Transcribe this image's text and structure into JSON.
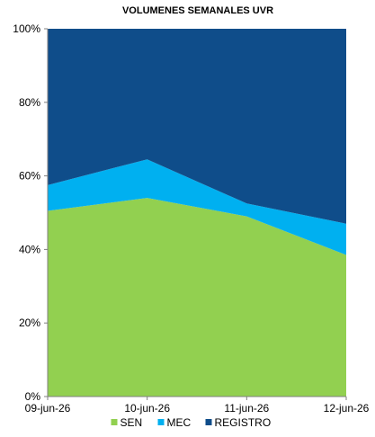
{
  "chart_data": {
    "type": "area",
    "stacked": true,
    "normalized": "percent",
    "title": "VOLUMENES SEMANALES UVR",
    "xlabel": "",
    "ylabel": "",
    "categories": [
      "09-jun-26",
      "10-jun-26",
      "11-jun-26",
      "12-jun-26"
    ],
    "ylim": [
      0,
      100
    ],
    "y_ticks": [
      0,
      20,
      40,
      60,
      80,
      100
    ],
    "y_tick_labels": [
      "0%",
      "20%",
      "40%",
      "60%",
      "80%",
      "100%"
    ],
    "grid": false,
    "legend_position": "bottom",
    "series": [
      {
        "name": "SEN",
        "color": "#92d050",
        "values": [
          50.5,
          54,
          49,
          38.5
        ]
      },
      {
        "name": "MEC",
        "color": "#00b0f0",
        "values": [
          7,
          10.5,
          3.5,
          8.5
        ]
      },
      {
        "name": "REGISTRO",
        "color": "#0f4d8a",
        "values": [
          42.5,
          35.5,
          47.5,
          53
        ]
      }
    ]
  }
}
